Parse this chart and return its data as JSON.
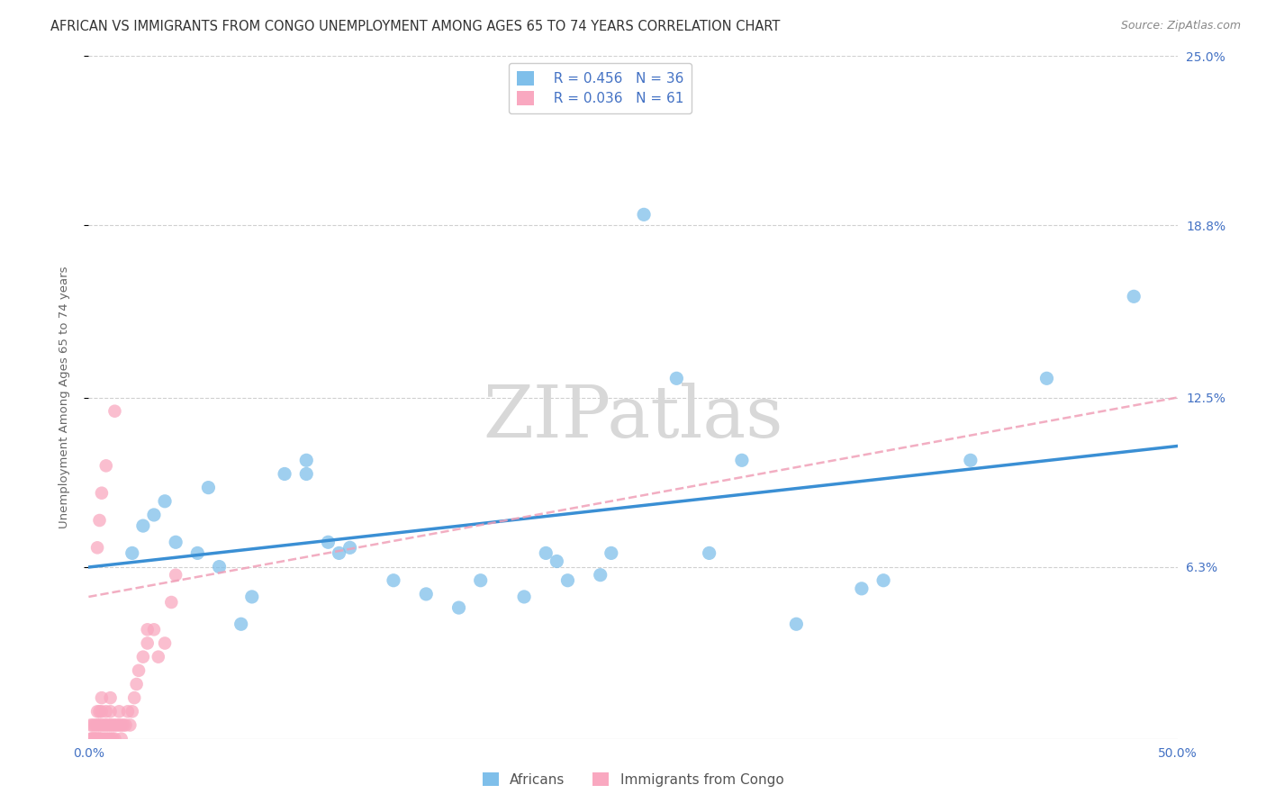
{
  "title": "AFRICAN VS IMMIGRANTS FROM CONGO UNEMPLOYMENT AMONG AGES 65 TO 74 YEARS CORRELATION CHART",
  "source": "Source: ZipAtlas.com",
  "ylabel": "Unemployment Among Ages 65 to 74 years",
  "xlim": [
    0.0,
    0.5
  ],
  "ylim": [
    -0.01,
    0.27
  ],
  "plot_ylim": [
    0.0,
    0.25
  ],
  "xticks": [
    0.0,
    0.1,
    0.2,
    0.3,
    0.4,
    0.5
  ],
  "xticklabels": [
    "0.0%",
    "",
    "",
    "",
    "",
    "50.0%"
  ],
  "ytick_labels_right": [
    "25.0%",
    "18.8%",
    "12.5%",
    "6.3%"
  ],
  "ytick_values_right": [
    0.25,
    0.188,
    0.125,
    0.063
  ],
  "watermark": "ZIPatlas",
  "africans_R": 0.456,
  "africans_N": 36,
  "congo_R": 0.036,
  "congo_N": 61,
  "africans_color": "#7fbfea",
  "congo_color": "#f9a8c0",
  "africans_line_color": "#3a8fd4",
  "congo_line_color": "#f0a0b8",
  "background_color": "#ffffff",
  "grid_color": "#d0d0d0",
  "africans_x": [
    0.02,
    0.025,
    0.03,
    0.035,
    0.04,
    0.05,
    0.055,
    0.06,
    0.07,
    0.075,
    0.09,
    0.1,
    0.1,
    0.11,
    0.115,
    0.12,
    0.14,
    0.155,
    0.17,
    0.18,
    0.2,
    0.21,
    0.215,
    0.22,
    0.235,
    0.24,
    0.255,
    0.27,
    0.285,
    0.3,
    0.325,
    0.355,
    0.365,
    0.405,
    0.44,
    0.48
  ],
  "africans_y": [
    0.068,
    0.078,
    0.082,
    0.087,
    0.072,
    0.068,
    0.092,
    0.063,
    0.042,
    0.052,
    0.097,
    0.097,
    0.102,
    0.072,
    0.068,
    0.07,
    0.058,
    0.053,
    0.048,
    0.058,
    0.052,
    0.068,
    0.065,
    0.058,
    0.06,
    0.068,
    0.192,
    0.132,
    0.068,
    0.102,
    0.042,
    0.055,
    0.058,
    0.102,
    0.132,
    0.162
  ],
  "congo_x": [
    0.001,
    0.001,
    0.0015,
    0.002,
    0.002,
    0.0025,
    0.003,
    0.003,
    0.0035,
    0.004,
    0.004,
    0.004,
    0.005,
    0.005,
    0.005,
    0.005,
    0.006,
    0.006,
    0.006,
    0.006,
    0.007,
    0.007,
    0.008,
    0.008,
    0.008,
    0.009,
    0.009,
    0.01,
    0.01,
    0.01,
    0.01,
    0.011,
    0.011,
    0.012,
    0.012,
    0.013,
    0.014,
    0.014,
    0.015,
    0.015,
    0.016,
    0.017,
    0.018,
    0.019,
    0.02,
    0.021,
    0.022,
    0.023,
    0.025,
    0.027,
    0.027,
    0.03,
    0.032,
    0.035,
    0.038,
    0.04,
    0.004,
    0.005,
    0.006,
    0.008,
    0.012
  ],
  "congo_y": [
    0.0,
    0.005,
    0.0,
    0.0,
    0.005,
    0.0,
    0.0,
    0.005,
    0.0,
    0.0,
    0.005,
    0.01,
    0.0,
    0.0,
    0.005,
    0.01,
    0.0,
    0.005,
    0.01,
    0.015,
    0.0,
    0.005,
    0.0,
    0.005,
    0.01,
    0.0,
    0.005,
    0.0,
    0.005,
    0.01,
    0.015,
    0.0,
    0.005,
    0.0,
    0.005,
    0.005,
    0.005,
    0.01,
    0.0,
    0.005,
    0.005,
    0.005,
    0.01,
    0.005,
    0.01,
    0.015,
    0.02,
    0.025,
    0.03,
    0.035,
    0.04,
    0.04,
    0.03,
    0.035,
    0.05,
    0.06,
    0.07,
    0.08,
    0.09,
    0.1,
    0.12
  ],
  "title_fontsize": 10.5,
  "axis_label_fontsize": 9.5,
  "tick_fontsize": 10,
  "legend_fontsize": 11
}
